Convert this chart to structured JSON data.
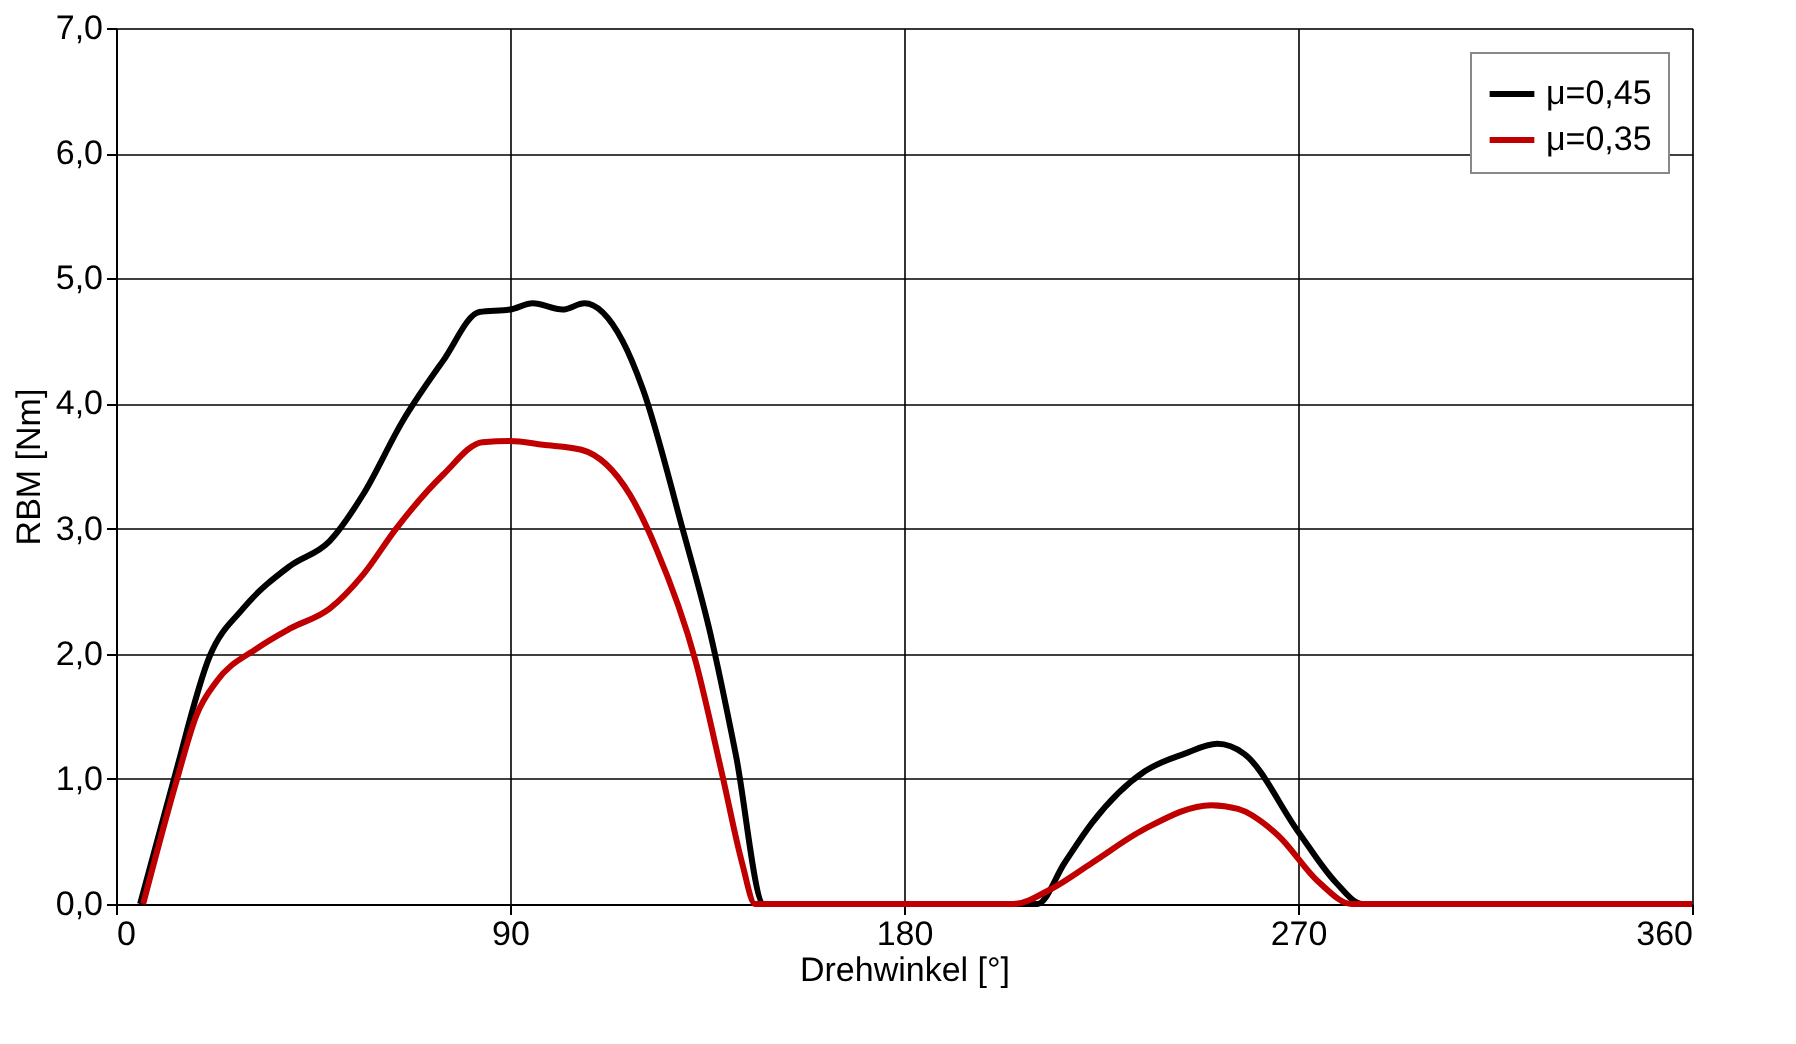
{
  "chart_data": {
    "type": "line",
    "xlabel": "Drehwinkel [°]",
    "ylabel": "RBM [Nm]",
    "xlim": [
      0,
      360
    ],
    "xticks": [
      0,
      90,
      180,
      270,
      360
    ],
    "ylim": [
      0,
      7
    ],
    "yticks": [
      {
        "value": 0,
        "label": "0,0"
      },
      {
        "value": 1,
        "label": "1,0"
      },
      {
        "value": 2,
        "label": "2,0"
      },
      {
        "value": 3,
        "label": "3,0"
      },
      {
        "value": 4,
        "label": "4,0"
      },
      {
        "value": 5,
        "label": "5,0"
      },
      {
        "value": 6,
        "label": "6,0"
      },
      {
        "value": 7,
        "label": "7,0"
      }
    ],
    "grid": true,
    "legend": "top right",
    "marker": "none",
    "line_style": "solid",
    "series": [
      {
        "name": "μ=0,45",
        "color": "#000000",
        "x": [
          5.5,
          13.1,
          21.4,
          29,
          39.7,
          48.8,
          56.4,
          65.5,
          74.7,
          83,
          90,
          95.2,
          102,
          107,
          115.7,
          120.3,
          129.4,
          135.5,
          141.6,
          148,
          180,
          210.5,
          216.7,
          223,
          235,
          244,
          251.6,
          257.7,
          270,
          278.7,
          284.7,
          320,
          360
        ],
        "values": [
          0,
          0.98,
          1.98,
          2.36,
          2.7,
          2.9,
          3.27,
          3.86,
          4.34,
          4.73,
          4.75,
          4.8,
          4.75,
          4.8,
          4.5,
          4.12,
          3.0,
          2.2,
          1.19,
          0,
          0,
          0,
          0.33,
          0.65,
          1.06,
          1.2,
          1.28,
          1.2,
          0.58,
          0.17,
          0,
          0,
          0
        ]
      },
      {
        "name": "μ=0,35",
        "color": "#c00000",
        "x": [
          6.2,
          13.8,
          18.4,
          23,
          32.1,
          39.7,
          48.8,
          56.4,
          64,
          74.7,
          83.7,
          90,
          97.5,
          106.3,
          117.4,
          123.4,
          132.4,
          138.5,
          143,
          146,
          180,
          205,
          213.6,
          223,
          235,
          250.2,
          256.3,
          265.4,
          274.6,
          282.3,
          320,
          360
        ],
        "values": [
          0,
          0.98,
          1.51,
          1.78,
          2.04,
          2.2,
          2.36,
          2.63,
          3.0,
          3.43,
          3.69,
          3.7,
          3.67,
          3.63,
          3.27,
          2.84,
          1.94,
          1.03,
          0.33,
          0,
          0,
          0,
          0.12,
          0.33,
          0.6,
          0.79,
          0.76,
          0.55,
          0.18,
          0,
          0,
          0
        ]
      }
    ]
  }
}
